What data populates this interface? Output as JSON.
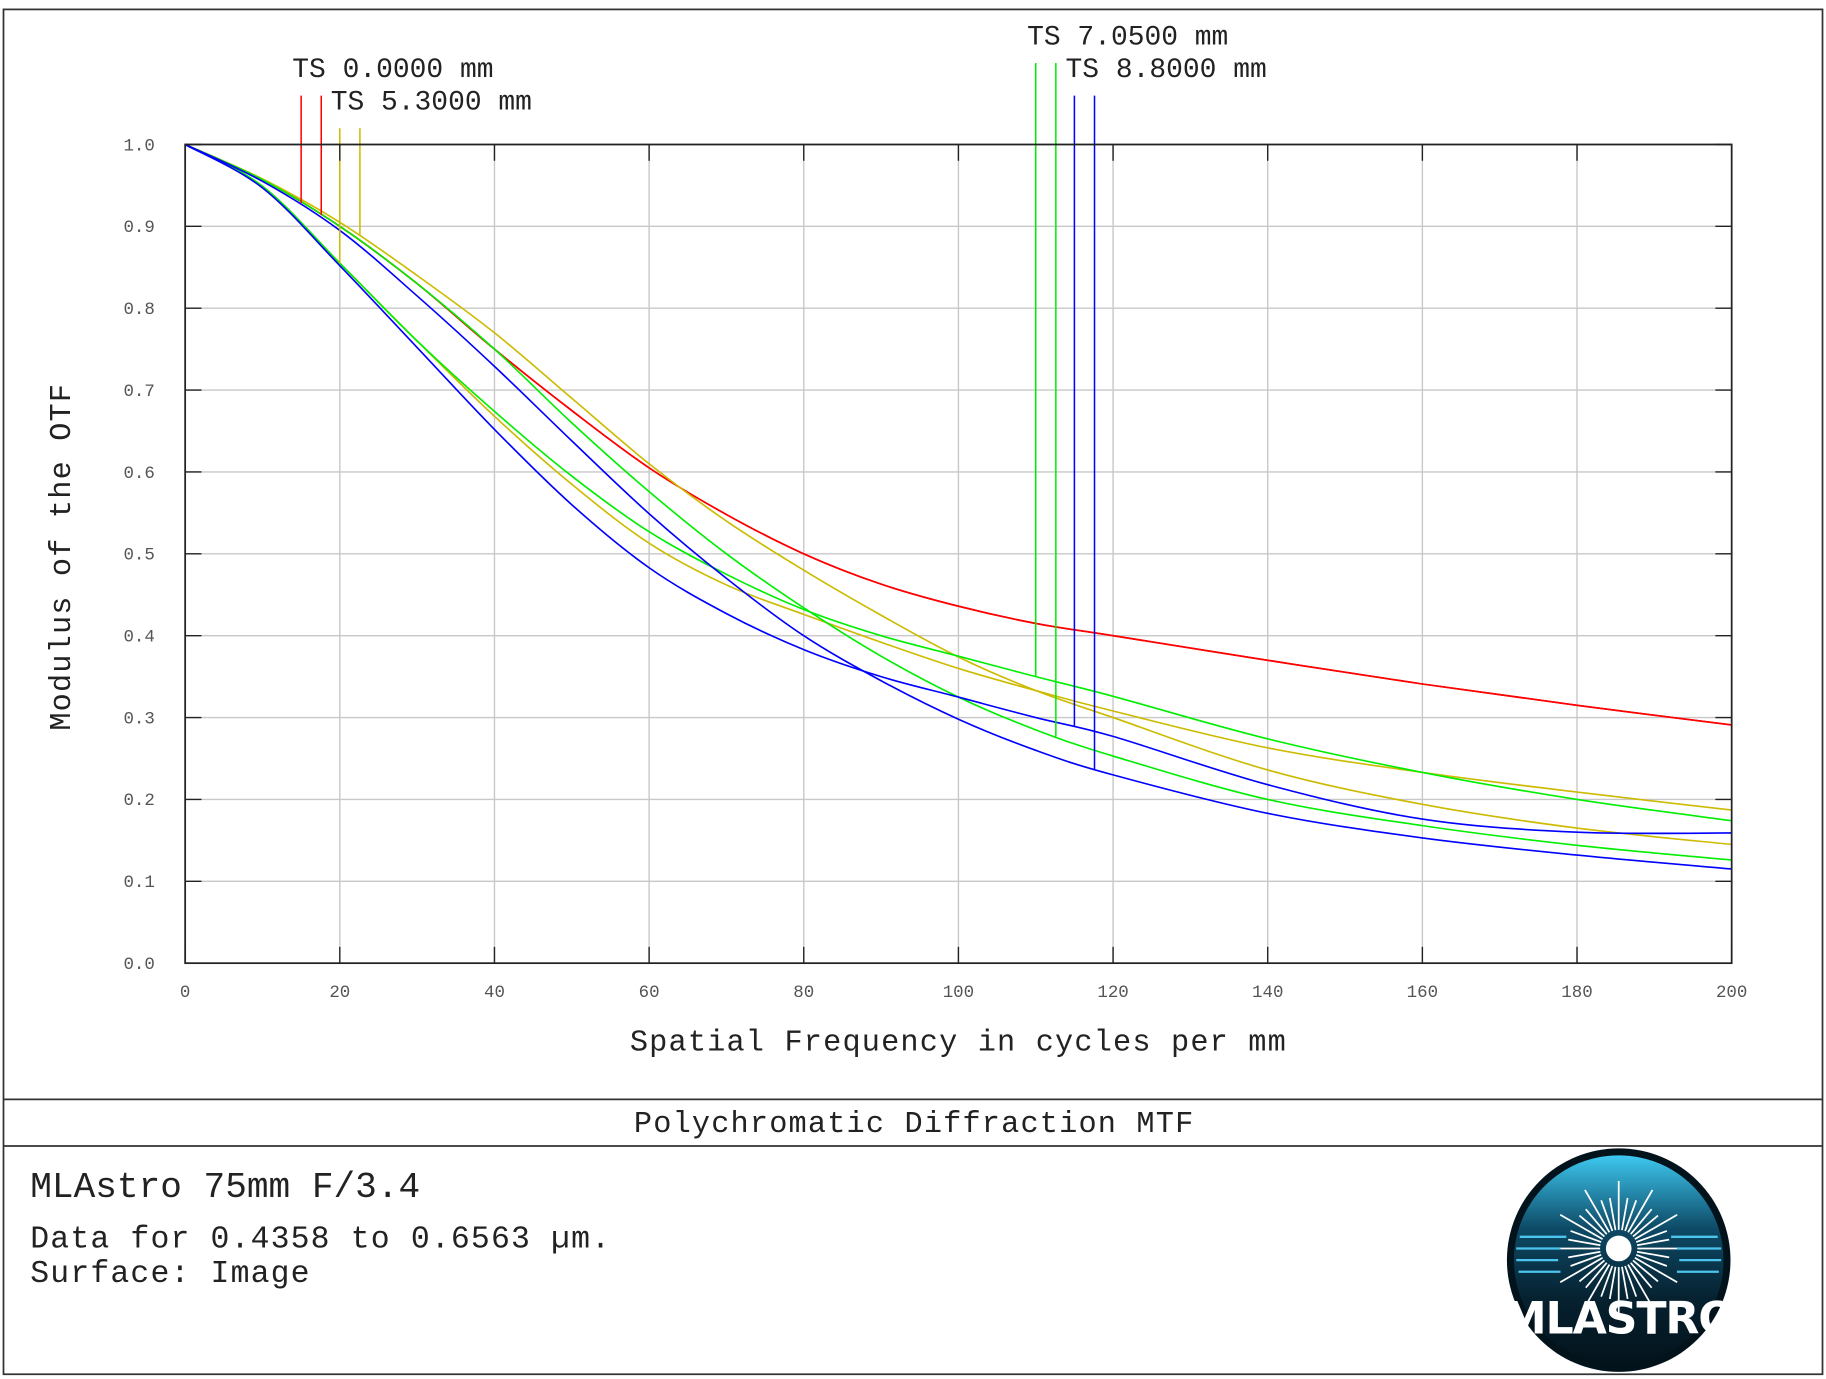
{
  "chart_data": {
    "type": "line",
    "title": "Polychromatic Diffraction MTF",
    "xlabel": "Spatial Frequency in cycles per mm",
    "ylabel": "Modulus of the OTF",
    "xlim": [
      0,
      200
    ],
    "ylim": [
      0,
      1
    ],
    "xticks": [
      "0",
      "20",
      "40",
      "60",
      "80",
      "100",
      "120",
      "140",
      "160",
      "180",
      "200"
    ],
    "yticks": [
      "0.0",
      "0.1",
      "0.2",
      "0.3",
      "0.4",
      "0.5",
      "0.6",
      "0.7",
      "0.8",
      "0.9",
      "1.0"
    ],
    "grid": true,
    "legend_placement": "top",
    "x": [
      0,
      10,
      20,
      30,
      40,
      50,
      60,
      70,
      80,
      90,
      100,
      110,
      120,
      140,
      160,
      180,
      200
    ],
    "fields": [
      {
        "label": "TS 0.0000 mm",
        "color": "#ff0000",
        "series": [
          {
            "values": [
              1.0,
              0.957,
              0.9,
              0.83,
              0.75,
              0.675,
              0.605,
              0.548,
              0.5,
              0.463,
              0.436,
              0.415,
              0.4,
              0.37,
              0.341,
              0.315,
              0.291
            ]
          },
          {
            "values": [
              1.0,
              0.957,
              0.9,
              0.83,
              0.75,
              0.675,
              0.605,
              0.548,
              0.5,
              0.463,
              0.436,
              0.415,
              0.4,
              0.37,
              0.341,
              0.315,
              0.291
            ]
          }
        ]
      },
      {
        "label": "TS 5.3000 mm",
        "color": "#ccbb00",
        "series": [
          {
            "values": [
              1.0,
              0.949,
              0.855,
              0.76,
              0.668,
              0.585,
              0.513,
              0.462,
              0.426,
              0.392,
              0.36,
              0.333,
              0.308,
              0.263,
              0.233,
              0.209,
              0.187
            ]
          },
          {
            "values": [
              1.0,
              0.958,
              0.905,
              0.84,
              0.77,
              0.69,
              0.61,
              0.54,
              0.48,
              0.425,
              0.374,
              0.333,
              0.3,
              0.236,
              0.194,
              0.165,
              0.145
            ]
          }
        ]
      },
      {
        "label": "TS 7.0500 mm",
        "color": "#00ee00",
        "series": [
          {
            "values": [
              1.0,
              0.949,
              0.855,
              0.76,
              0.674,
              0.595,
              0.527,
              0.475,
              0.432,
              0.4,
              0.375,
              0.35,
              0.326,
              0.274,
              0.233,
              0.2,
              0.174
            ]
          },
          {
            "values": [
              1.0,
              0.957,
              0.9,
              0.83,
              0.75,
              0.66,
              0.576,
              0.5,
              0.434,
              0.375,
              0.325,
              0.285,
              0.253,
              0.2,
              0.168,
              0.144,
              0.126
            ]
          }
        ]
      },
      {
        "label": "TS 8.8000 mm",
        "color": "#0000ff",
        "series": [
          {
            "values": [
              1.0,
              0.947,
              0.852,
              0.752,
              0.652,
              0.56,
              0.483,
              0.427,
              0.383,
              0.35,
              0.325,
              0.3,
              0.277,
              0.218,
              0.176,
              0.16,
              0.159
            ]
          },
          {
            "values": [
              1.0,
              0.955,
              0.895,
              0.815,
              0.729,
              0.638,
              0.549,
              0.47,
              0.4,
              0.345,
              0.298,
              0.26,
              0.23,
              0.183,
              0.153,
              0.132,
              0.115
            ]
          }
        ]
      }
    ]
  },
  "footer": {
    "title": "Polychromatic Diffraction MTF",
    "lens_name": "MLAstro 75mm F/3.4",
    "data_range": "Data for 0.4358 to 0.6563 µm.",
    "surface": "Surface: Image"
  },
  "logo": {
    "text": "MLASTRO",
    "icon": "starburst-logo"
  }
}
